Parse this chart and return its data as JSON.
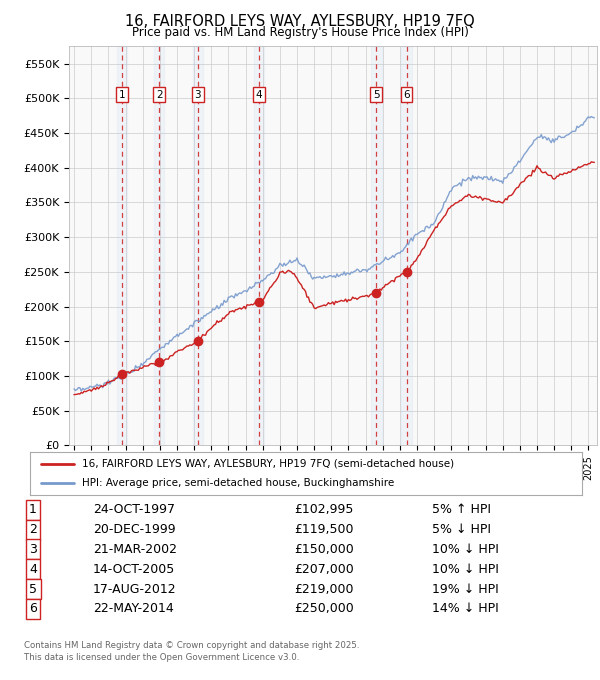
{
  "title_line1": "16, FAIRFORD LEYS WAY, AYLESBURY, HP19 7FQ",
  "title_line2": "Price paid vs. HM Land Registry's House Price Index (HPI)",
  "background_color": "#ffffff",
  "plot_bg_color": "#f9f9f9",
  "grid_color": "#cccccc",
  "hpi_color": "#7799cc",
  "price_color": "#cc2222",
  "transactions": [
    {
      "num": 1,
      "date_str": "24-OCT-1997",
      "date_x": 1997.81,
      "price": 102995,
      "pct": "5% ↑ HPI"
    },
    {
      "num": 2,
      "date_str": "20-DEC-1999",
      "date_x": 1999.97,
      "price": 119500,
      "pct": "5% ↓ HPI"
    },
    {
      "num": 3,
      "date_str": "21-MAR-2002",
      "date_x": 2002.22,
      "price": 150000,
      "pct": "10% ↓ HPI"
    },
    {
      "num": 4,
      "date_str": "14-OCT-2005",
      "date_x": 2005.79,
      "price": 207000,
      "pct": "10% ↓ HPI"
    },
    {
      "num": 5,
      "date_str": "17-AUG-2012",
      "date_x": 2012.63,
      "price": 219000,
      "pct": "19% ↓ HPI"
    },
    {
      "num": 6,
      "date_str": "22-MAY-2014",
      "date_x": 2014.39,
      "price": 250000,
      "pct": "14% ↓ HPI"
    }
  ],
  "legend_label1": "16, FAIRFORD LEYS WAY, AYLESBURY, HP19 7FQ (semi-detached house)",
  "legend_label2": "HPI: Average price, semi-detached house, Buckinghamshire",
  "footer_line1": "Contains HM Land Registry data © Crown copyright and database right 2025.",
  "footer_line2": "This data is licensed under the Open Government Licence v3.0.",
  "ylim": [
    0,
    575000
  ],
  "yticks": [
    0,
    50000,
    100000,
    150000,
    200000,
    250000,
    300000,
    350000,
    400000,
    450000,
    500000,
    550000
  ],
  "ytick_labels": [
    "£0",
    "£50K",
    "£100K",
    "£150K",
    "£200K",
    "£250K",
    "£300K",
    "£350K",
    "£400K",
    "£450K",
    "£500K",
    "£550K"
  ],
  "xlim_start": 1994.7,
  "xlim_end": 2025.5,
  "hpi_anchors_x": [
    1995.0,
    1996.0,
    1997.0,
    1998.0,
    1999.0,
    2000.0,
    2001.0,
    2002.0,
    2003.0,
    2004.0,
    2005.0,
    2006.0,
    2007.0,
    2008.0,
    2009.0,
    2010.0,
    2011.0,
    2012.0,
    2013.0,
    2014.0,
    2015.0,
    2016.0,
    2017.0,
    2018.0,
    2019.0,
    2020.0,
    2021.0,
    2022.0,
    2023.0,
    2024.0,
    2025.0
  ],
  "hpi_anchors_y": [
    78000,
    83000,
    90000,
    102000,
    118000,
    140000,
    158000,
    175000,
    192000,
    210000,
    222000,
    238000,
    258000,
    268000,
    240000,
    245000,
    248000,
    252000,
    265000,
    278000,
    305000,
    320000,
    370000,
    385000,
    385000,
    380000,
    410000,
    445000,
    440000,
    450000,
    472000
  ],
  "price_anchors_x": [
    1995.0,
    1996.0,
    1997.0,
    1997.81,
    1998.5,
    1999.0,
    1999.97,
    2000.5,
    2001.0,
    2002.22,
    2003.0,
    2004.0,
    2005.0,
    2005.79,
    2006.0,
    2007.0,
    2007.5,
    2008.0,
    2009.0,
    2010.0,
    2011.0,
    2012.0,
    2012.63,
    2013.0,
    2014.0,
    2014.39,
    2015.0,
    2016.0,
    2017.0,
    2018.0,
    2019.0,
    2020.0,
    2021.0,
    2022.0,
    2023.0,
    2024.0,
    2025.0
  ],
  "price_anchors_y": [
    73000,
    80000,
    90000,
    102995,
    108000,
    112000,
    119500,
    126000,
    135000,
    150000,
    170000,
    190000,
    200000,
    207000,
    210000,
    248000,
    252000,
    242000,
    198000,
    205000,
    210000,
    215000,
    219000,
    228000,
    245000,
    250000,
    270000,
    310000,
    345000,
    360000,
    355000,
    350000,
    375000,
    400000,
    385000,
    395000,
    407000
  ]
}
